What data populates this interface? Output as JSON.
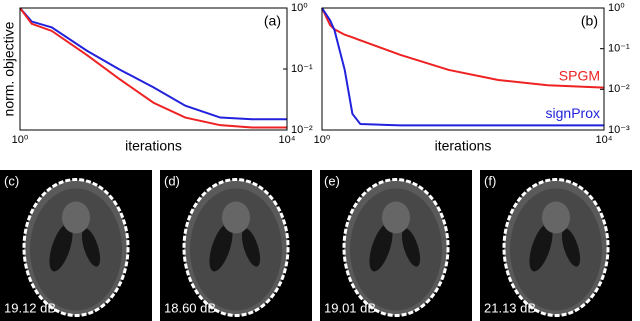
{
  "chart_data": [
    {
      "type": "line",
      "annotation": "(a)",
      "ylabel": "norm. objective",
      "xlabel": "iterations",
      "xscale": "log",
      "yscale": "log",
      "xlim": [
        1,
        10000
      ],
      "xticks": [
        {
          "value": 1,
          "label": "10⁰"
        },
        {
          "value": 10000,
          "label": "10⁴"
        }
      ],
      "ylim": [
        0.01,
        1
      ],
      "yticks": [
        {
          "value": 1,
          "label": "10⁰"
        },
        {
          "value": 0.1,
          "label": "10⁻¹"
        },
        {
          "value": 0.01,
          "label": "10⁻²"
        }
      ],
      "x": [
        1,
        1.5,
        3,
        10,
        30,
        100,
        300,
        1000,
        3000,
        10000
      ],
      "series": [
        {
          "color": "#2222dd",
          "values": [
            1,
            0.6,
            0.48,
            0.2,
            0.1,
            0.05,
            0.025,
            0.016,
            0.015,
            0.015
          ]
        },
        {
          "color": "#ee2222",
          "values": [
            1,
            0.55,
            0.42,
            0.17,
            0.07,
            0.028,
            0.016,
            0.012,
            0.011,
            0.011
          ]
        }
      ]
    },
    {
      "type": "line",
      "annotation": "(b)",
      "xlabel": "iterations",
      "xscale": "log",
      "yscale": "log",
      "xlim": [
        1,
        10000
      ],
      "xticks": [
        {
          "value": 1,
          "label": "10⁰"
        },
        {
          "value": 10000,
          "label": "10⁴"
        }
      ],
      "ylim": [
        0.001,
        1
      ],
      "yticks": [
        {
          "value": 1,
          "label": "10⁰"
        },
        {
          "value": 0.1,
          "label": "10⁻¹"
        },
        {
          "value": 0.01,
          "label": "10⁻²"
        },
        {
          "value": 0.001,
          "label": "10⁻³"
        }
      ],
      "x": [
        1,
        1.3,
        1.5,
        2.1,
        2.7,
        3.5,
        13,
        63,
        316,
        1585,
        10000
      ],
      "series": [
        {
          "name": "SPGM",
          "color": "#ee2222",
          "values": [
            1,
            0.38,
            0.3,
            0.22,
            0.19,
            0.16,
            0.07,
            0.03,
            0.017,
            0.0126,
            0.011
          ]
        },
        {
          "name": "signProx",
          "color": "#2222dd",
          "values": [
            1,
            0.5,
            0.29,
            0.03,
            0.0025,
            0.0014,
            0.0013,
            0.0013,
            0.0013,
            0.0013,
            0.0013
          ]
        }
      ]
    }
  ],
  "images": [
    {
      "label": "(c)",
      "caption": "19.12 dB"
    },
    {
      "label": "(d)",
      "caption": "18.60 dB"
    },
    {
      "label": "(e)",
      "caption": "19.01 dB"
    },
    {
      "label": "(f)",
      "caption": "21.13 dB"
    }
  ]
}
